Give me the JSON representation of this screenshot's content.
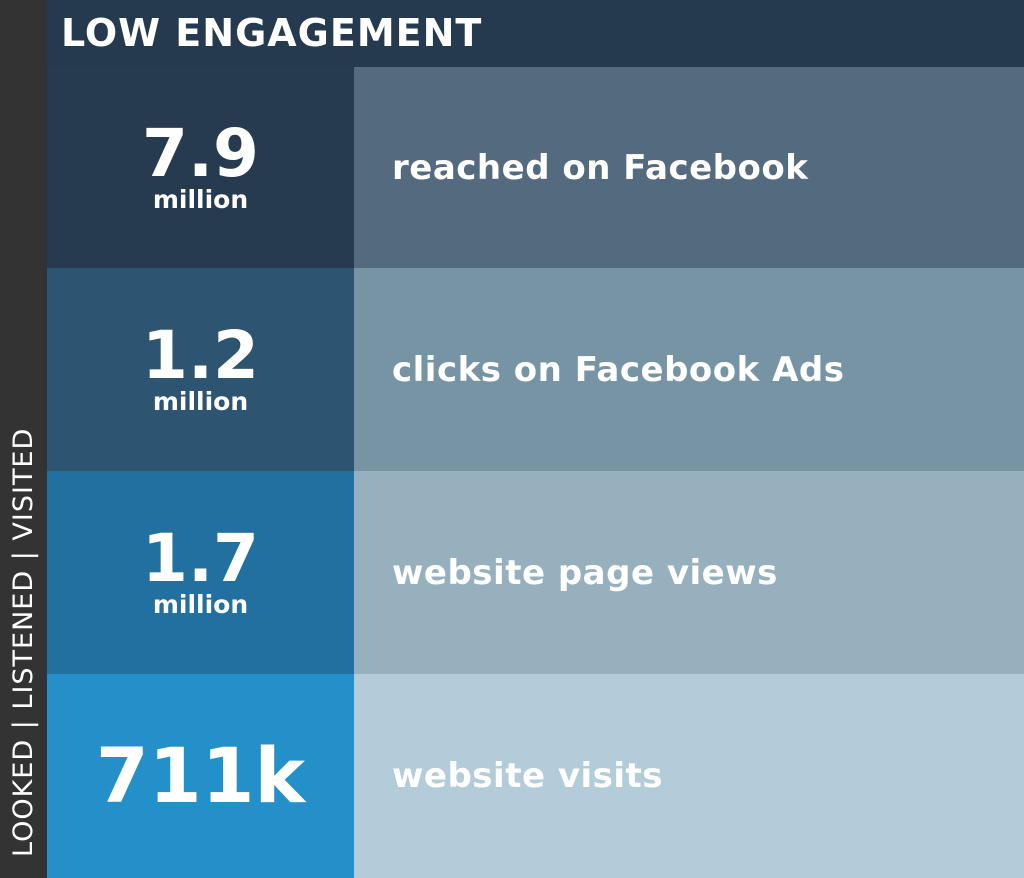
{
  "header": {
    "title": "LOW ENGAGEMENT"
  },
  "side_label": "LOOKED | LISTENED | VISITED",
  "rows": [
    {
      "value": "7.9",
      "unit": "million",
      "description": "reached on Facebook"
    },
    {
      "value": "1.2",
      "unit": "million",
      "description": "clicks on Facebook Ads"
    },
    {
      "value": "1.7",
      "unit": "million",
      "description": "website page views"
    },
    {
      "value": "711k",
      "description": "website visits"
    }
  ]
}
